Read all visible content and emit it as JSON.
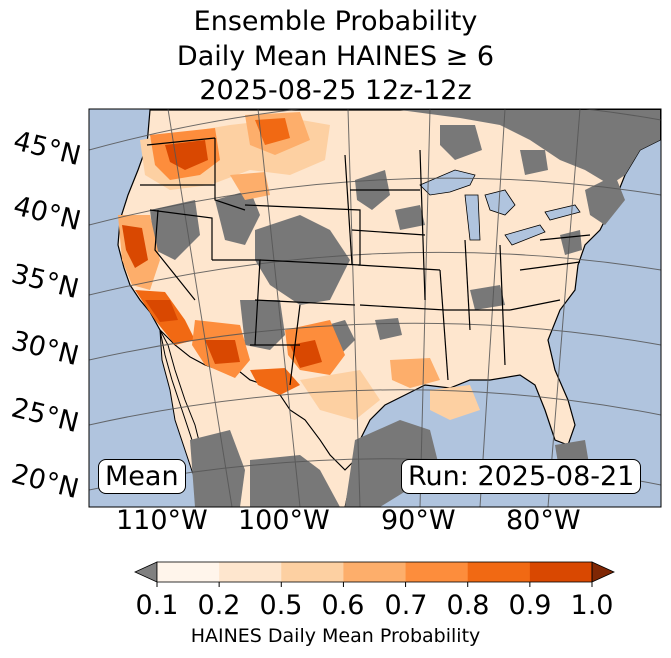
{
  "title": {
    "line1": "Ensemble Probability",
    "line2": "Daily Mean HAINES ≥ 6",
    "line3": "2025-08-25 12z-12z"
  },
  "map": {
    "lat_labels": [
      "45°N",
      "40°N",
      "35°N",
      "30°N",
      "25°N",
      "20°N"
    ],
    "lon_labels": [
      "110°W",
      "100°W",
      "90°W",
      "80°W"
    ],
    "stat_label": "Mean",
    "run_label": "Run: 2025-08-21",
    "colors": {
      "ocean": "#b0c4de",
      "no_data_land": "#787878",
      "graticule": "#555555"
    }
  },
  "colorbar": {
    "label": "HAINES Daily Mean Probability",
    "ticks": [
      "0.1",
      "0.2",
      "0.5",
      "0.6",
      "0.7",
      "0.8",
      "0.9",
      "1.0"
    ],
    "under_color": "#808080",
    "over_color": "#7f2704",
    "bin_colors": [
      "#fff5eb",
      "#fee6ce",
      "#fdd0a2",
      "#fdae6b",
      "#fd8d3c",
      "#f16913",
      "#d94801"
    ]
  }
}
